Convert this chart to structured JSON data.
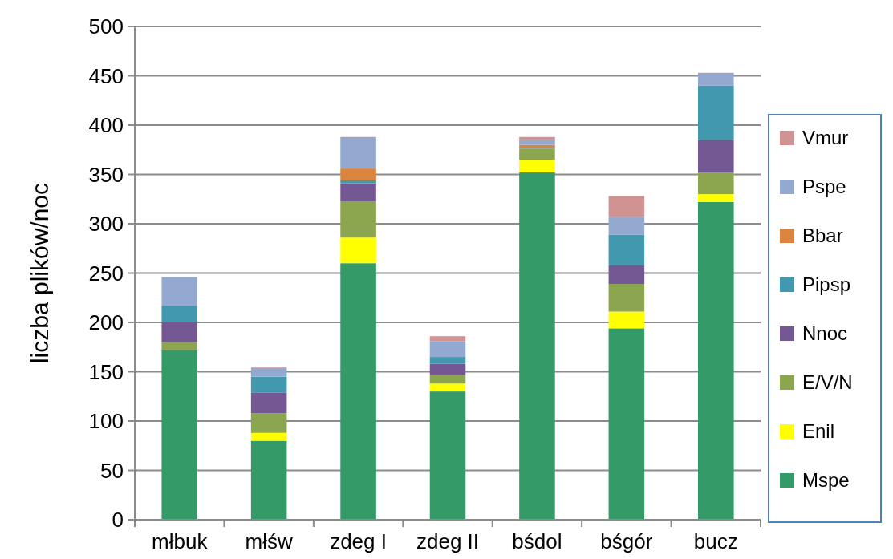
{
  "chart_data": {
    "type": "bar",
    "stacked": true,
    "ylabel": "liczba plików/noc",
    "categories": [
      "młbuk",
      "młśw",
      "zdeg I",
      "zdeg II",
      "bśdol",
      "bśgór",
      "bucz"
    ],
    "ylim": [
      0,
      500
    ],
    "yticks": [
      0,
      50,
      100,
      150,
      200,
      250,
      300,
      350,
      400,
      450,
      500
    ],
    "grid": "y",
    "legend": "right",
    "series": [
      {
        "name": "Mspe",
        "color": "#349a68",
        "values": [
          172,
          80,
          260,
          130,
          352,
          194,
          322
        ]
      },
      {
        "name": "Enil",
        "color": "#ffff00",
        "values": [
          0,
          8,
          26,
          8,
          13,
          17,
          8
        ]
      },
      {
        "name": "E/V/N",
        "color": "#8ca54f",
        "values": [
          8,
          20,
          37,
          9,
          11,
          28,
          22
        ]
      },
      {
        "name": "Nnoc",
        "color": "#735894",
        "values": [
          20,
          21,
          18,
          11,
          0,
          19,
          33
        ]
      },
      {
        "name": "Pipsp",
        "color": "#4198af",
        "values": [
          17,
          16,
          3,
          7,
          1,
          31,
          55
        ]
      },
      {
        "name": "Bbar",
        "color": "#db843d",
        "values": [
          0,
          0,
          12,
          0,
          3,
          0,
          0
        ]
      },
      {
        "name": "Pspe",
        "color": "#93a9d0",
        "values": [
          29,
          9,
          31,
          16,
          5,
          18,
          12
        ]
      },
      {
        "name": "Vmur",
        "color": "#d09392",
        "values": [
          0,
          1,
          1,
          5,
          3,
          21,
          1
        ]
      }
    ]
  }
}
